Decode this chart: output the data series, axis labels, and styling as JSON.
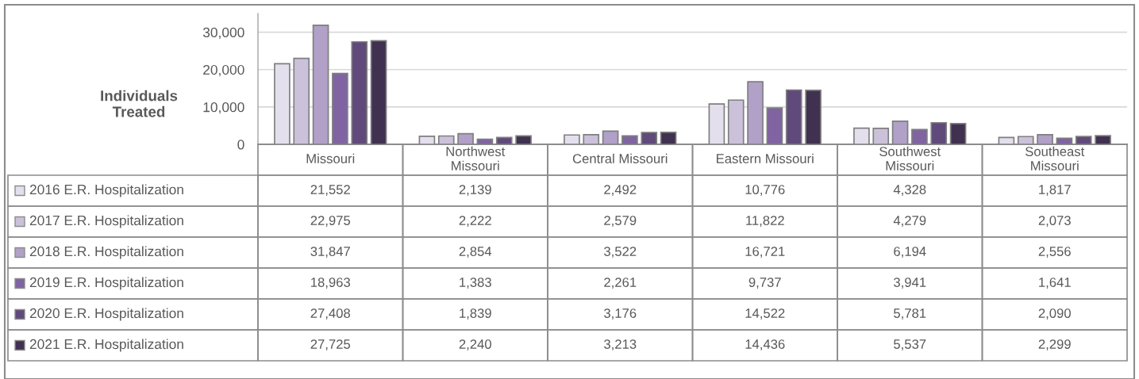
{
  "chart_data": {
    "type": "bar",
    "ylabel": "Individuals\nTreated",
    "categories": [
      "Missouri",
      "Northwest\nMissouri",
      "Central Missouri",
      "Eastern Missouri",
      "Southwest\nMissouri",
      "Southeast\nMissouri"
    ],
    "series": [
      {
        "name": "2016 E.R. Hospitalization",
        "color": "#e4dfec",
        "values": [
          21552,
          2139,
          2492,
          10776,
          4328,
          1817
        ],
        "value_labels": [
          "21,552",
          "2,139",
          "2,492",
          "10,776",
          "4,328",
          "1,817"
        ]
      },
      {
        "name": "2017 E.R. Hospitalization",
        "color": "#ccc1da",
        "values": [
          22975,
          2222,
          2579,
          11822,
          4279,
          2073
        ],
        "value_labels": [
          "22,975",
          "2,222",
          "2,579",
          "11,822",
          "4,279",
          "2,073"
        ]
      },
      {
        "name": "2018 E.R. Hospitalization",
        "color": "#b1a0c7",
        "values": [
          31847,
          2854,
          3522,
          16721,
          6194,
          2556
        ],
        "value_labels": [
          "31,847",
          "2,854",
          "3,522",
          "16,721",
          "6,194",
          "2,556"
        ]
      },
      {
        "name": "2019 E.R. Hospitalization",
        "color": "#8064a2",
        "values": [
          18963,
          1383,
          2261,
          9737,
          3941,
          1641
        ],
        "value_labels": [
          "18,963",
          "1,383",
          "2,261",
          "9,737",
          "3,941",
          "1,641"
        ]
      },
      {
        "name": "2020 E.R. Hospitalization",
        "color": "#604a7b",
        "values": [
          27408,
          1839,
          3176,
          14522,
          5781,
          2090
        ],
        "value_labels": [
          "27,408",
          "1,839",
          "3,176",
          "14,522",
          "5,781",
          "2,090"
        ]
      },
      {
        "name": "2021 E.R. Hospitalization",
        "color": "#403151",
        "values": [
          27725,
          2240,
          3213,
          14436,
          5537,
          2299
        ],
        "value_labels": [
          "27,725",
          "2,240",
          "3,213",
          "14,436",
          "5,537",
          "2,299"
        ]
      }
    ],
    "ylim": [
      0,
      35000
    ],
    "yticks": [
      {
        "value": 0,
        "label": "0"
      },
      {
        "value": 10000,
        "label": "10,000"
      },
      {
        "value": 20000,
        "label": "20,000"
      },
      {
        "value": 30000,
        "label": "30,000"
      }
    ],
    "grid": "y",
    "legend": "bottom left"
  }
}
